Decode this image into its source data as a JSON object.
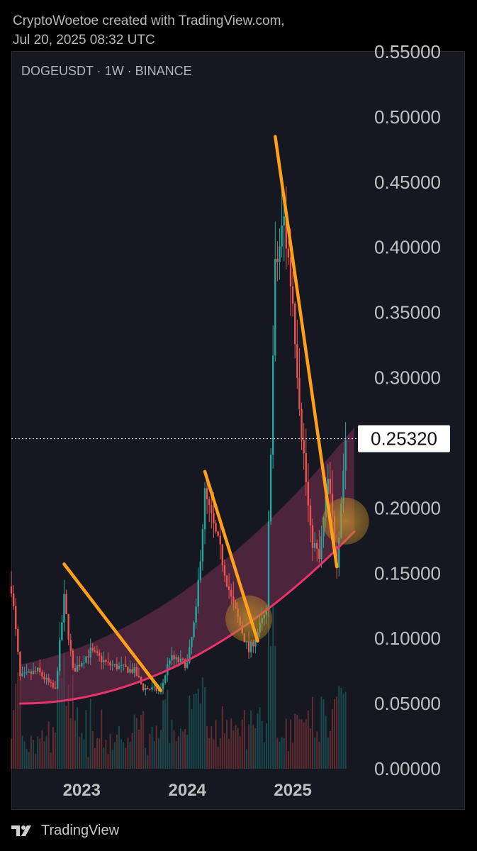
{
  "header": {
    "line1": "CryptoWoetoe created with TradingView.com,",
    "line2": "Jul 20, 2025 08:32 UTC"
  },
  "symbol": "DOGEUSDT · 1W · BINANCE",
  "footer": {
    "brand": "TradingView",
    "logo_icon": "tradingview-logo-icon"
  },
  "colors": {
    "background": "#151821",
    "up": "#26a69a",
    "down": "#ef5350",
    "trendline": "#ff9f1a",
    "curve": "#e8336b",
    "band": "#7a2f52",
    "highlight": "#b8862a",
    "axis_text": "#c0c0c0"
  },
  "chart_data": {
    "type": "candlestick",
    "symbol": "DOGEUSDT",
    "interval": "1W",
    "exchange": "BINANCE",
    "y_axis": {
      "side": "right",
      "range": [
        0.0,
        0.55
      ],
      "tick_labels": [
        "0.55000",
        "0.50000",
        "0.45000",
        "0.40000",
        "0.35000",
        "0.30000",
        "0.25000",
        "0.20000",
        "0.15000",
        "0.10000",
        "0.05000",
        "0.00000"
      ],
      "tick_values": [
        0.55,
        0.5,
        0.45,
        0.4,
        0.35,
        0.3,
        0.25,
        0.2,
        0.15,
        0.1,
        0.05,
        0.0
      ]
    },
    "x_axis": {
      "range": [
        "2022-05",
        "2025-08"
      ],
      "tick_labels": [
        "2023",
        "2024",
        "2025"
      ],
      "tick_values": [
        "2023-01",
        "2024-01",
        "2025-01"
      ]
    },
    "last_price": {
      "value": 0.2532,
      "label": "0.25320"
    },
    "price_keypoints": [
      {
        "date": "2022-05",
        "price": 0.14
      },
      {
        "date": "2022-06",
        "price": 0.07
      },
      {
        "date": "2022-08",
        "price": 0.075
      },
      {
        "date": "2022-10",
        "price": 0.06
      },
      {
        "date": "2022-11",
        "price": 0.13
      },
      {
        "date": "2022-12",
        "price": 0.075
      },
      {
        "date": "2023-02",
        "price": 0.09
      },
      {
        "date": "2023-04",
        "price": 0.08
      },
      {
        "date": "2023-07",
        "price": 0.075
      },
      {
        "date": "2023-08",
        "price": 0.062
      },
      {
        "date": "2023-10",
        "price": 0.06
      },
      {
        "date": "2023-11",
        "price": 0.085
      },
      {
        "date": "2024-01",
        "price": 0.08
      },
      {
        "date": "2024-02",
        "price": 0.12
      },
      {
        "date": "2024-03",
        "price": 0.21
      },
      {
        "date": "2024-05",
        "price": 0.16
      },
      {
        "date": "2024-06",
        "price": 0.13
      },
      {
        "date": "2024-07",
        "price": 0.11
      },
      {
        "date": "2024-08",
        "price": 0.09
      },
      {
        "date": "2024-09",
        "price": 0.105
      },
      {
        "date": "2024-10",
        "price": 0.12
      },
      {
        "date": "2024-11",
        "price": 0.38
      },
      {
        "date": "2024-12",
        "price": 0.42
      },
      {
        "date": "2025-01",
        "price": 0.36
      },
      {
        "date": "2025-02",
        "price": 0.26
      },
      {
        "date": "2025-03",
        "price": 0.18
      },
      {
        "date": "2025-04",
        "price": 0.16
      },
      {
        "date": "2025-05",
        "price": 0.22
      },
      {
        "date": "2025-06",
        "price": 0.16
      },
      {
        "date": "2025-07",
        "price": 0.2532
      }
    ],
    "annotations": {
      "downtrend_lines": [
        {
          "from": {
            "date": "2022-11",
            "price": 0.157
          },
          "to": {
            "date": "2023-10",
            "price": 0.06
          }
        },
        {
          "from": {
            "date": "2024-03",
            "price": 0.228
          },
          "to": {
            "date": "2024-09",
            "price": 0.098
          }
        },
        {
          "from": {
            "date": "2024-11",
            "price": 0.485
          },
          "to": {
            "date": "2025-06",
            "price": 0.155
          }
        }
      ],
      "support_curve": {
        "from": {
          "date": "2022-06",
          "price": 0.05
        },
        "to": {
          "date": "2025-08",
          "price": 0.182
        }
      },
      "highlight_circles": [
        {
          "date": "2024-08",
          "price": 0.115
        },
        {
          "date": "2025-07",
          "price": 0.19
        }
      ]
    }
  }
}
